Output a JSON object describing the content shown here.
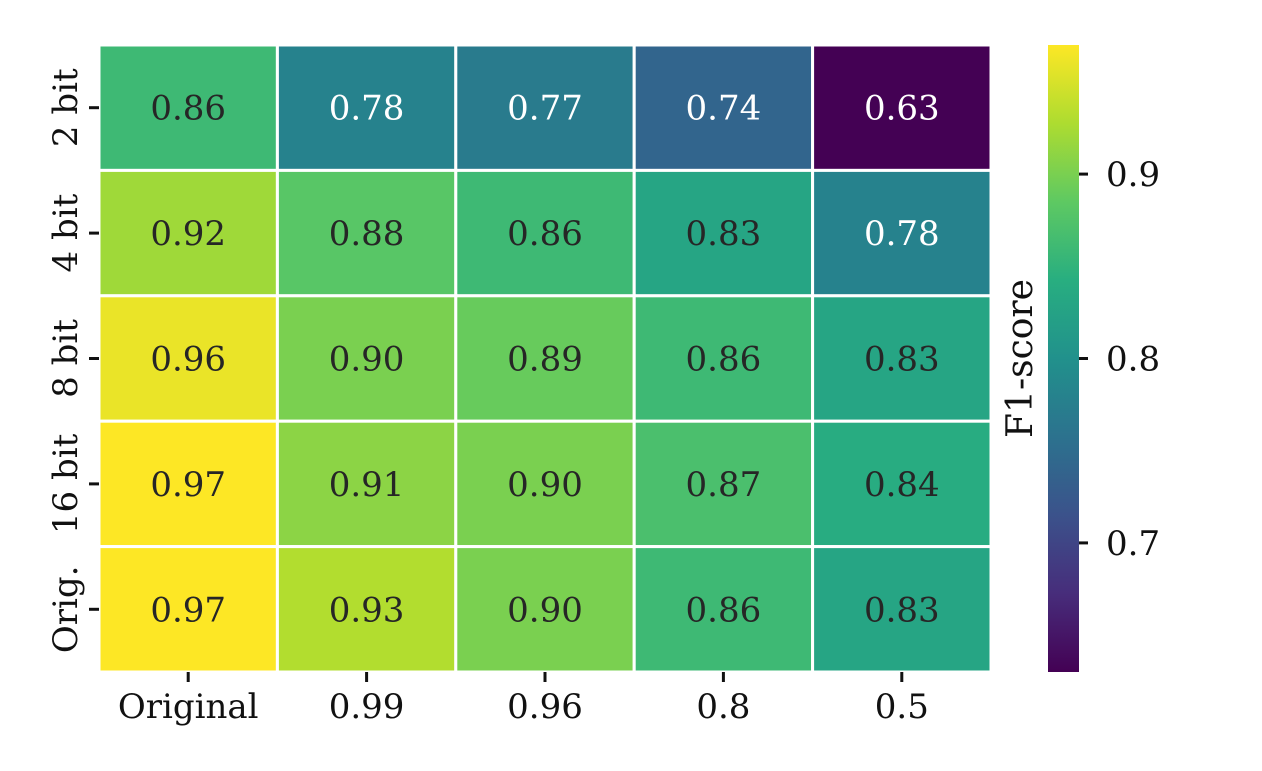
{
  "chart_data": {
    "type": "heatmap",
    "x_categories": [
      "Original",
      "0.99",
      "0.96",
      "0.8",
      "0.5"
    ],
    "y_categories": [
      "2 bit",
      "4 bit",
      "8 bit",
      "16 bit",
      "Orig."
    ],
    "values": [
      [
        0.86,
        0.78,
        0.77,
        0.74,
        0.63
      ],
      [
        0.92,
        0.88,
        0.86,
        0.83,
        0.78
      ],
      [
        0.96,
        0.9,
        0.89,
        0.86,
        0.83
      ],
      [
        0.97,
        0.91,
        0.9,
        0.87,
        0.84
      ],
      [
        0.97,
        0.93,
        0.9,
        0.86,
        0.83
      ]
    ],
    "cell_labels": [
      [
        "0.86",
        "0.78",
        "0.77",
        "0.74",
        "0.63"
      ],
      [
        "0.92",
        "0.88",
        "0.86",
        "0.83",
        "0.78"
      ],
      [
        "0.96",
        "0.90",
        "0.89",
        "0.86",
        "0.83"
      ],
      [
        "0.97",
        "0.91",
        "0.90",
        "0.87",
        "0.84"
      ],
      [
        "0.97",
        "0.93",
        "0.90",
        "0.86",
        "0.83"
      ]
    ],
    "colormap": "viridis",
    "vmin": 0.63,
    "vmax": 0.97,
    "colorbar": {
      "label": "F1-score",
      "ticks": [
        0.7,
        0.8,
        0.9
      ],
      "tick_labels": [
        "0.7",
        "0.8",
        "0.9"
      ]
    },
    "grid": true
  }
}
